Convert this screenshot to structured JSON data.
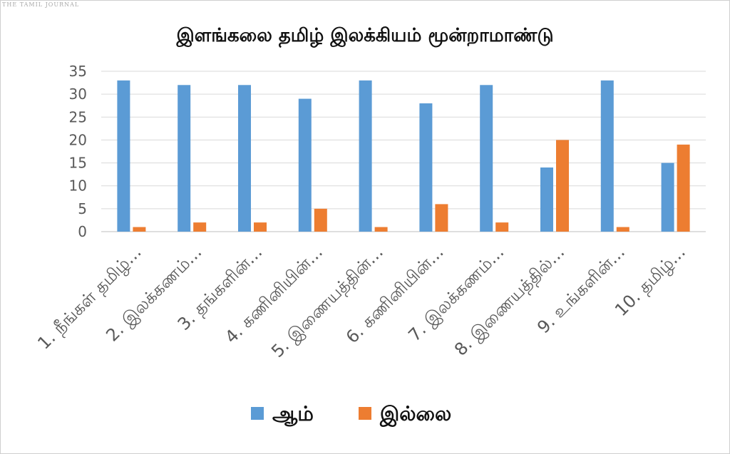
{
  "watermark": "THE TAMIL JOURNAL",
  "chart_data": {
    "type": "bar",
    "title": "இளங்கலை தமிழ் இலக்கியம் மூன்றாமாண்டு",
    "xlabel": "",
    "ylabel": "",
    "ylim": [
      0,
      35
    ],
    "yticks": [
      0,
      5,
      10,
      15,
      20,
      25,
      30,
      35
    ],
    "grid": true,
    "legend_position": "bottom",
    "categories": [
      "1. நீங்கள் தமிழ்...",
      "2. இலக்கணம்...",
      "3. தங்களின்...",
      "4. கணினியின்...",
      "5. இணையத்தின்...",
      "6. கணினியின்...",
      "7. இலக்கணம்...",
      "8. இணையத்தில்...",
      "9. உங்களின்...",
      "10. தமிழ்..."
    ],
    "series": [
      {
        "name": "ஆம்",
        "color": "#5b9bd5",
        "values": [
          33,
          32,
          32,
          29,
          33,
          28,
          32,
          14,
          33,
          15
        ]
      },
      {
        "name": "இல்லை",
        "color": "#ed7d31",
        "values": [
          1,
          2,
          2,
          5,
          1,
          6,
          2,
          20,
          1,
          19
        ]
      }
    ]
  }
}
